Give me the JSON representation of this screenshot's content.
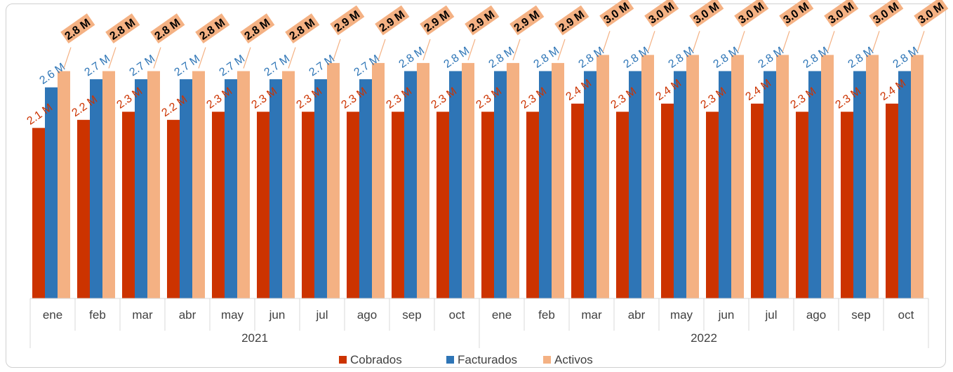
{
  "chart_data": {
    "type": "bar",
    "groups": [
      {
        "label": "2021",
        "categories": [
          "ene",
          "feb",
          "mar",
          "abr",
          "may",
          "jun",
          "jul",
          "ago",
          "sep",
          "oct"
        ]
      },
      {
        "label": "2022",
        "categories": [
          "ene",
          "feb",
          "mar",
          "abr",
          "may",
          "jun",
          "jul",
          "ago",
          "sep",
          "oct"
        ]
      }
    ],
    "series": [
      {
        "name": "Cobrados",
        "color": "#cc3300",
        "values": [
          2.1,
          2.2,
          2.3,
          2.2,
          2.3,
          2.3,
          2.3,
          2.3,
          2.3,
          2.3,
          2.3,
          2.3,
          2.4,
          2.3,
          2.4,
          2.3,
          2.4,
          2.3,
          2.3,
          2.4
        ],
        "labels": [
          "2.1 M",
          "2.2 M",
          "2.3 M",
          "2.2 M",
          "2.3 M",
          "2.3 M",
          "2.3 M",
          "2.3 M",
          "2.3 M",
          "2.3 M",
          "2.3 M",
          "2.3 M",
          "2.4 M",
          "2.3 M",
          "2.4 M",
          "2.3 M",
          "2.4 M",
          "2.3 M",
          "2.3 M",
          "2.4 M"
        ]
      },
      {
        "name": "Facturados",
        "color": "#2e75b6",
        "values": [
          2.6,
          2.7,
          2.7,
          2.7,
          2.7,
          2.7,
          2.7,
          2.7,
          2.8,
          2.8,
          2.8,
          2.8,
          2.8,
          2.8,
          2.8,
          2.8,
          2.8,
          2.8,
          2.8,
          2.8
        ],
        "labels": [
          "2.6 M",
          "2.7 M",
          "2.7 M",
          "2.7 M",
          "2.7 M",
          "2.7 M",
          "2.7 M",
          "2.7 M",
          "2.8 M",
          "2.8 M",
          "2.8 M",
          "2.8 M",
          "2.8 M",
          "2.8 M",
          "2.8 M",
          "2.8 M",
          "2.8 M",
          "2.8 M",
          "2.8 M",
          "2.8 M"
        ]
      },
      {
        "name": "Activos",
        "color": "#f4b183",
        "values": [
          2.8,
          2.8,
          2.8,
          2.8,
          2.8,
          2.8,
          2.9,
          2.9,
          2.9,
          2.9,
          2.9,
          2.9,
          3.0,
          3.0,
          3.0,
          3.0,
          3.0,
          3.0,
          3.0,
          3.0
        ],
        "labels": [
          "2.8 M",
          "2.8 M",
          "2.8 M",
          "2.8 M",
          "2.8 M",
          "2.8 M",
          "2.9 M",
          "2.9 M",
          "2.9 M",
          "2.9 M",
          "2.9 M",
          "2.9 M",
          "3.0 M",
          "3.0 M",
          "3.0 M",
          "3.0 M",
          "3.0 M",
          "3.0 M",
          "3.0 M",
          "3.0 M"
        ]
      }
    ],
    "ylim": [
      0,
      3.4
    ],
    "grid": false,
    "legend_position": "bottom"
  }
}
